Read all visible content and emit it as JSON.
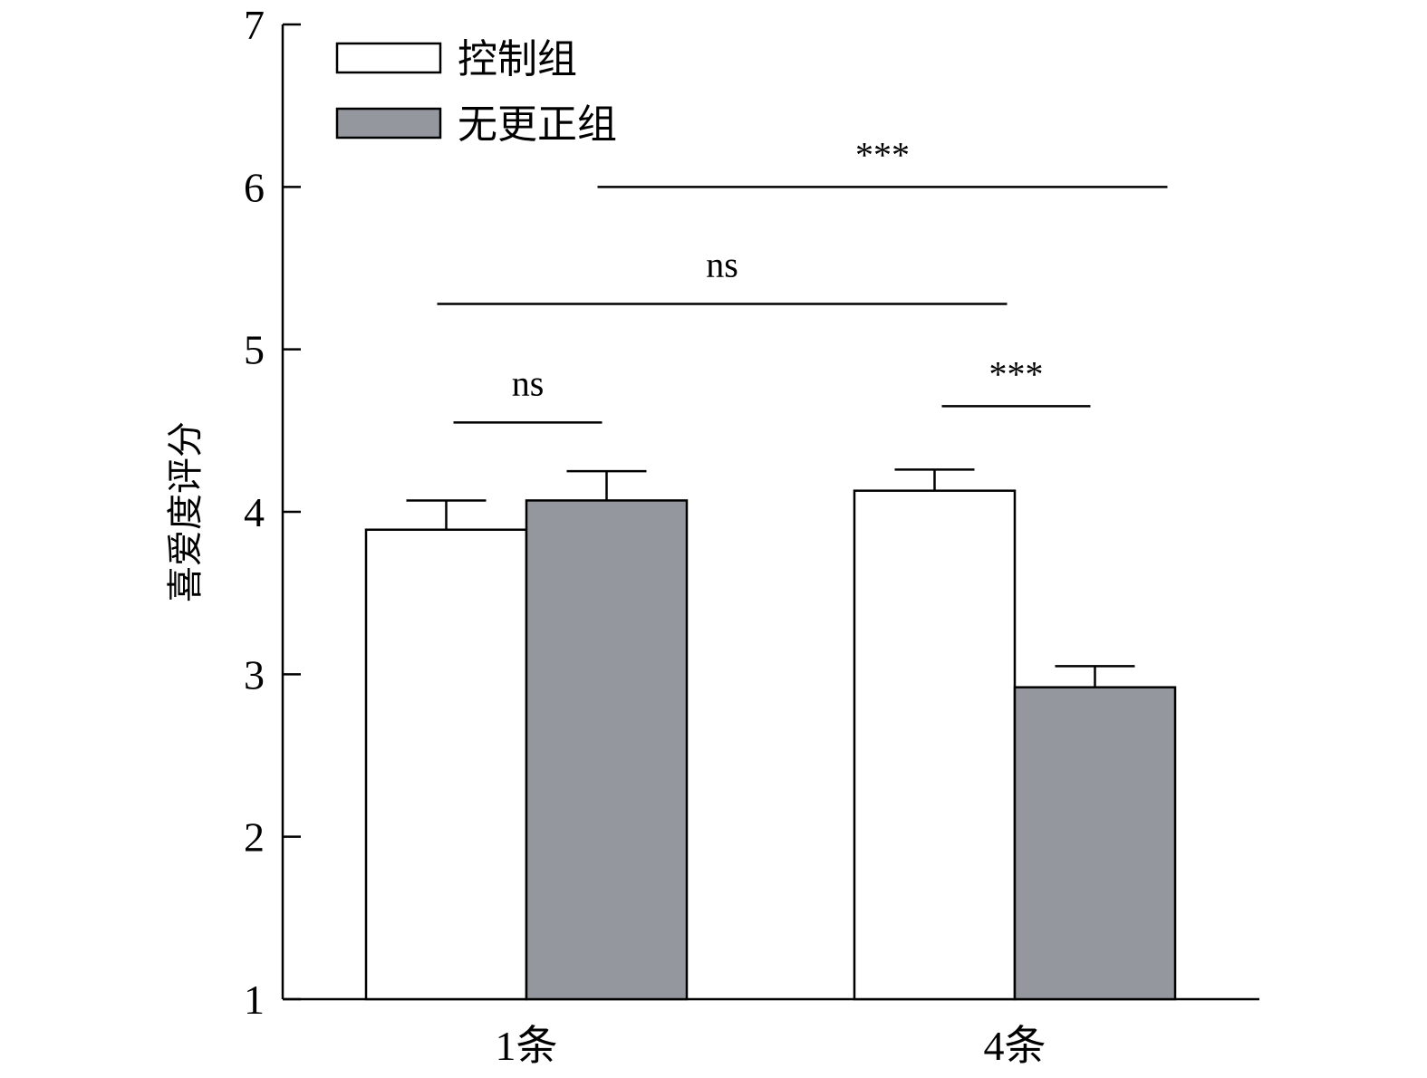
{
  "chart_data": {
    "type": "bar",
    "title": "",
    "xlabel": "",
    "ylabel": "喜爱度评分",
    "ylim": [
      1,
      7
    ],
    "yticks": [
      1,
      2,
      3,
      4,
      5,
      6,
      7
    ],
    "grid": false,
    "legend_position": "top-left",
    "categories": [
      "1条",
      "4条"
    ],
    "series": [
      {
        "name": "控制组",
        "color": "#ffffff",
        "values": [
          3.89,
          4.13
        ],
        "errors": [
          0.18,
          0.13
        ]
      },
      {
        "name": "无更正组",
        "color": "#94979e",
        "values": [
          4.07,
          2.92
        ],
        "errors": [
          0.18,
          0.13
        ]
      }
    ],
    "annotations": [
      {
        "text": "ns",
        "from": {
          "category": 0,
          "series": 0
        },
        "to": {
          "category": 0,
          "series": 1
        },
        "y": 4.55
      },
      {
        "text": "***",
        "from": {
          "category": 1,
          "series": 0
        },
        "to": {
          "category": 1,
          "series": 1
        },
        "y": 4.65
      },
      {
        "text": "ns",
        "from": {
          "category": 0,
          "series": 0
        },
        "to": {
          "category": 1,
          "series": 0
        },
        "y": 5.28
      },
      {
        "text": "***",
        "from": {
          "category": 0,
          "series": 1
        },
        "to": {
          "category": 1,
          "series": 1
        },
        "y": 6.0
      }
    ]
  }
}
